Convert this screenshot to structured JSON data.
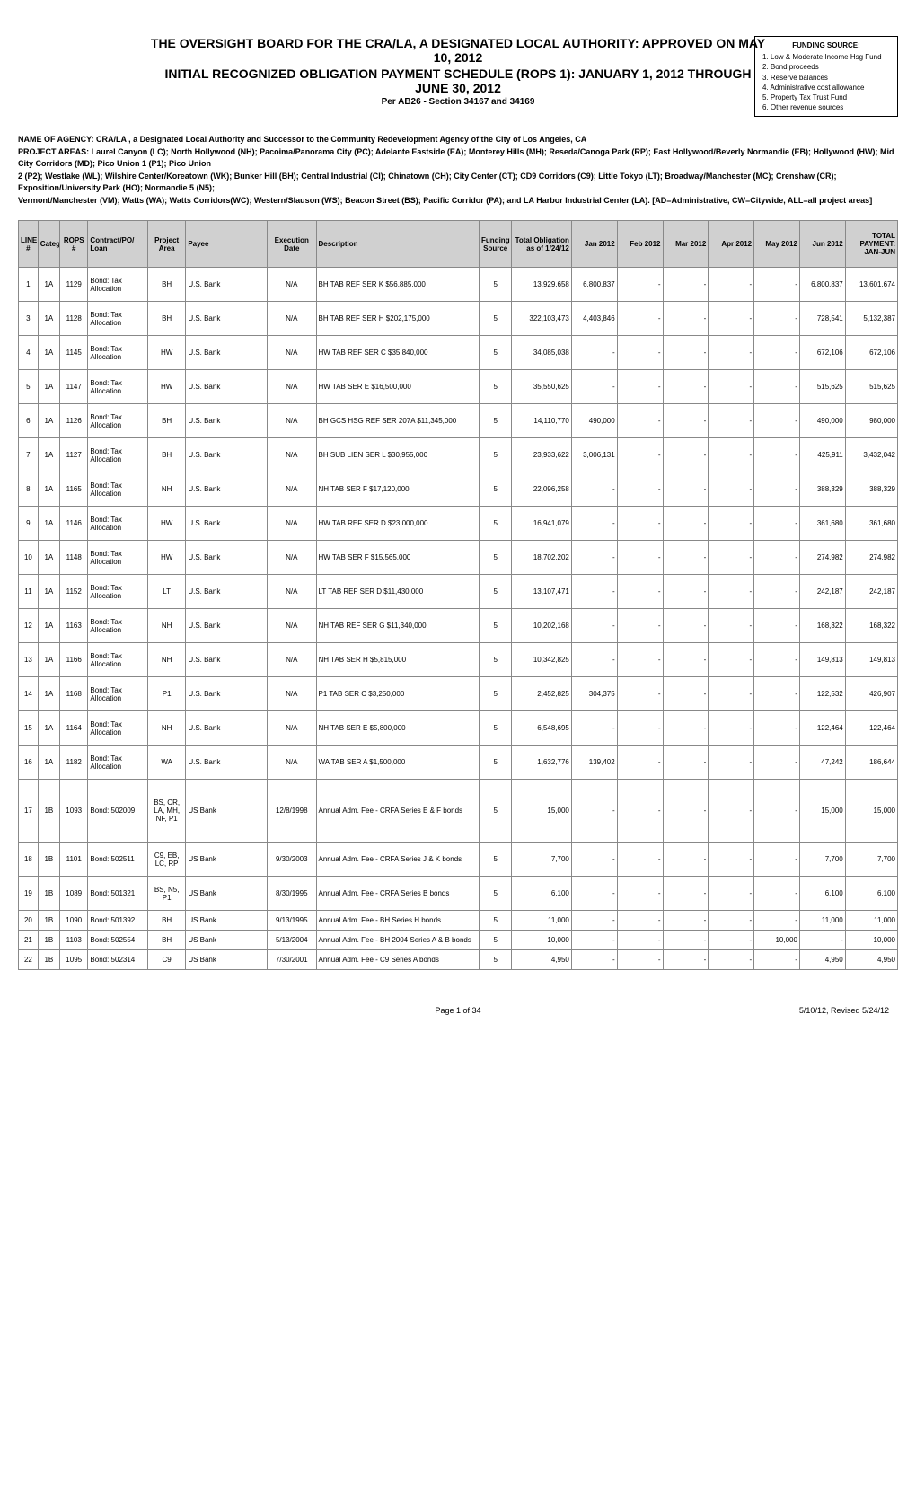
{
  "header": {
    "title1": "THE OVERSIGHT BOARD FOR THE CRA/LA, A DESIGNATED LOCAL AUTHORITY: APPROVED ON MAY 10, 2012",
    "title2": "INITIAL RECOGNIZED OBLIGATION PAYMENT SCHEDULE (ROPS 1):  JANUARY 1, 2012 THROUGH JUNE 30, 2012",
    "subtitle": "Per AB26 - Section 34167 and 34169"
  },
  "funding_source": {
    "heading": "FUNDING SOURCE:",
    "items": [
      "1. Low & Moderate Income Hsg Fund",
      "2. Bond proceeds",
      "3. Reserve balances",
      "4. Administrative cost allowance",
      "5. Property Tax Trust Fund",
      "6. Other revenue sources"
    ]
  },
  "meta": {
    "agency": "NAME OF AGENCY:  CRA/LA , a Designated Local Authority and Successor to the Community Redevelopment Agency of the City of Los Angeles, CA",
    "areas1": "PROJECT AREAS:   Laurel Canyon (LC); North Hollywood (NH); Pacoima/Panorama City (PC); Adelante Eastside (EA); Monterey Hills (MH); Reseda/Canoga Park (RP); East Hollywood/Beverly Normandie (EB); Hollywood (HW); Mid City Corridors (MD); Pico Union 1 (P1); Pico Union",
    "areas2": "2 (P2); Westlake (WL); Wilshire Center/Koreatown (WK); Bunker Hill (BH); Central Industrial (CI); Chinatown (CH); City Center (CT); CD9 Corridors (C9); Little Tokyo (LT); Broadway/Manchester (MC); Crenshaw (CR); Exposition/University Park (HO); Normandie 5 (N5);",
    "areas3": "Vermont/Manchester (VM); Watts (WA); Watts Corridors(WC); Western/Slauson (WS); Beacon Street (BS); Pacific Corridor (PA); and LA Harbor Industrial Center (LA).  [AD=Administrative, CW=Citywide, ALL=all project areas]"
  },
  "columns": [
    "LINE #",
    "Category",
    "ROPS #",
    "Contract/PO/ Loan",
    "Project Area",
    "Payee",
    "Execution Date",
    "Description",
    "Funding Source",
    "Total Obligation as of 1/24/12",
    "Jan 2012",
    "Feb 2012",
    "Mar 2012",
    "Apr 2012",
    "May 2012",
    "Jun 2012",
    "TOTAL PAYMENT: JAN-JUN"
  ],
  "rows": [
    {
      "line": "1",
      "cat": "1A",
      "rops": "1129",
      "con": "Bond: Tax Allocation",
      "area": "BH",
      "payee": "U.S. Bank",
      "exec": "N/A",
      "desc": "BH TAB REF SER K $56,885,000",
      "fund": "5",
      "tot": "13,929,658",
      "jan": "6,800,837",
      "feb": "-",
      "mar": "-",
      "apr": "-",
      "may": "-",
      "jun": "6,800,837",
      "pay": "13,601,674",
      "short": false
    },
    {
      "line": "3",
      "cat": "1A",
      "rops": "1128",
      "con": "Bond: Tax Allocation",
      "area": "BH",
      "payee": "U.S. Bank",
      "exec": "N/A",
      "desc": "BH TAB REF SER H $202,175,000",
      "fund": "5",
      "tot": "322,103,473",
      "jan": "4,403,846",
      "feb": "-",
      "mar": "-",
      "apr": "-",
      "may": "-",
      "jun": "728,541",
      "pay": "5,132,387",
      "short": false
    },
    {
      "line": "4",
      "cat": "1A",
      "rops": "1145",
      "con": "Bond: Tax Allocation",
      "area": "HW",
      "payee": "U.S. Bank",
      "exec": "N/A",
      "desc": "HW TAB REF SER C $35,840,000",
      "fund": "5",
      "tot": "34,085,038",
      "jan": "-",
      "feb": "-",
      "mar": "-",
      "apr": "-",
      "may": "-",
      "jun": "672,106",
      "pay": "672,106",
      "short": false
    },
    {
      "line": "5",
      "cat": "1A",
      "rops": "1147",
      "con": "Bond: Tax Allocation",
      "area": "HW",
      "payee": "U.S. Bank",
      "exec": "N/A",
      "desc": "HW TAB SER E $16,500,000",
      "fund": "5",
      "tot": "35,550,625",
      "jan": "-",
      "feb": "-",
      "mar": "-",
      "apr": "-",
      "may": "-",
      "jun": "515,625",
      "pay": "515,625",
      "short": false
    },
    {
      "line": "6",
      "cat": "1A",
      "rops": "1126",
      "con": "Bond: Tax Allocation",
      "area": "BH",
      "payee": "U.S. Bank",
      "exec": "N/A",
      "desc": "BH GCS HSG REF SER 207A $11,345,000",
      "fund": "5",
      "tot": "14,110,770",
      "jan": "490,000",
      "feb": "-",
      "mar": "-",
      "apr": "-",
      "may": "-",
      "jun": "490,000",
      "pay": "980,000",
      "short": false
    },
    {
      "line": "7",
      "cat": "1A",
      "rops": "1127",
      "con": "Bond: Tax Allocation",
      "area": "BH",
      "payee": "U.S. Bank",
      "exec": "N/A",
      "desc": "BH SUB LIEN SER L $30,955,000",
      "fund": "5",
      "tot": "23,933,622",
      "jan": "3,006,131",
      "feb": "-",
      "mar": "-",
      "apr": "-",
      "may": "-",
      "jun": "425,911",
      "pay": "3,432,042",
      "short": false
    },
    {
      "line": "8",
      "cat": "1A",
      "rops": "1165",
      "con": "Bond: Tax Allocation",
      "area": "NH",
      "payee": "U.S. Bank",
      "exec": "N/A",
      "desc": "NH TAB SER F $17,120,000",
      "fund": "5",
      "tot": "22,096,258",
      "jan": "-",
      "feb": "-",
      "mar": "-",
      "apr": "-",
      "may": "-",
      "jun": "388,329",
      "pay": "388,329",
      "short": false
    },
    {
      "line": "9",
      "cat": "1A",
      "rops": "1146",
      "con": "Bond: Tax Allocation",
      "area": "HW",
      "payee": "U.S. Bank",
      "exec": "N/A",
      "desc": "HW TAB REF SER D $23,000,000",
      "fund": "5",
      "tot": "16,941,079",
      "jan": "-",
      "feb": "-",
      "mar": "-",
      "apr": "-",
      "may": "-",
      "jun": "361,680",
      "pay": "361,680",
      "short": false
    },
    {
      "line": "10",
      "cat": "1A",
      "rops": "1148",
      "con": "Bond: Tax Allocation",
      "area": "HW",
      "payee": "U.S. Bank",
      "exec": "N/A",
      "desc": "HW TAB SER F $15,565,000",
      "fund": "5",
      "tot": "18,702,202",
      "jan": "-",
      "feb": "-",
      "mar": "-",
      "apr": "-",
      "may": "-",
      "jun": "274,982",
      "pay": "274,982",
      "short": false
    },
    {
      "line": "11",
      "cat": "1A",
      "rops": "1152",
      "con": "Bond: Tax Allocation",
      "area": "LT",
      "payee": "U.S. Bank",
      "exec": "N/A",
      "desc": "LT TAB REF SER D $11,430,000",
      "fund": "5",
      "tot": "13,107,471",
      "jan": "-",
      "feb": "-",
      "mar": "-",
      "apr": "-",
      "may": "-",
      "jun": "242,187",
      "pay": "242,187",
      "short": false
    },
    {
      "line": "12",
      "cat": "1A",
      "rops": "1163",
      "con": "Bond: Tax Allocation",
      "area": "NH",
      "payee": "U.S. Bank",
      "exec": "N/A",
      "desc": "NH TAB REF SER G $11,340,000",
      "fund": "5",
      "tot": "10,202,168",
      "jan": "-",
      "feb": "-",
      "mar": "-",
      "apr": "-",
      "may": "-",
      "jun": "168,322",
      "pay": "168,322",
      "short": false
    },
    {
      "line": "13",
      "cat": "1A",
      "rops": "1166",
      "con": "Bond: Tax Allocation",
      "area": "NH",
      "payee": "U.S. Bank",
      "exec": "N/A",
      "desc": "NH TAB SER H $5,815,000",
      "fund": "5",
      "tot": "10,342,825",
      "jan": "-",
      "feb": "-",
      "mar": "-",
      "apr": "-",
      "may": "-",
      "jun": "149,813",
      "pay": "149,813",
      "short": false
    },
    {
      "line": "14",
      "cat": "1A",
      "rops": "1168",
      "con": "Bond: Tax Allocation",
      "area": "P1",
      "payee": "U.S. Bank",
      "exec": "N/A",
      "desc": "P1 TAB SER C $3,250,000",
      "fund": "5",
      "tot": "2,452,825",
      "jan": "304,375",
      "feb": "-",
      "mar": "-",
      "apr": "-",
      "may": "-",
      "jun": "122,532",
      "pay": "426,907",
      "short": false
    },
    {
      "line": "15",
      "cat": "1A",
      "rops": "1164",
      "con": "Bond: Tax Allocation",
      "area": "NH",
      "payee": "U.S. Bank",
      "exec": "N/A",
      "desc": "NH TAB SER E $5,800,000",
      "fund": "5",
      "tot": "6,548,695",
      "jan": "-",
      "feb": "-",
      "mar": "-",
      "apr": "-",
      "may": "-",
      "jun": "122,464",
      "pay": "122,464",
      "short": false
    },
    {
      "line": "16",
      "cat": "1A",
      "rops": "1182",
      "con": "Bond: Tax Allocation",
      "area": "WA",
      "payee": "U.S. Bank",
      "exec": "N/A",
      "desc": "WA TAB SER A $1,500,000",
      "fund": "5",
      "tot": "1,632,776",
      "jan": "139,402",
      "feb": "-",
      "mar": "-",
      "apr": "-",
      "may": "-",
      "jun": "47,242",
      "pay": "186,644",
      "short": false
    },
    {
      "line": "17",
      "cat": "1B",
      "rops": "1093",
      "con": "Bond: 502009",
      "area": "BS, CR, LA, MH, NF, P1",
      "payee": "US Bank",
      "exec": "12/8/1998",
      "desc": "Annual Adm. Fee - CRFA Series E & F bonds",
      "fund": "5",
      "tot": "15,000",
      "jan": "-",
      "feb": "-",
      "mar": "-",
      "apr": "-",
      "may": "-",
      "jun": "15,000",
      "pay": "15,000",
      "short": false,
      "tall": true
    },
    {
      "line": "18",
      "cat": "1B",
      "rops": "1101",
      "con": "Bond: 502511",
      "area": "C9, EB, LC, RP",
      "payee": "US Bank",
      "exec": "9/30/2003",
      "desc": "Annual Adm. Fee - CRFA Series J & K bonds",
      "fund": "5",
      "tot": "7,700",
      "jan": "-",
      "feb": "-",
      "mar": "-",
      "apr": "-",
      "may": "-",
      "jun": "7,700",
      "pay": "7,700",
      "short": false
    },
    {
      "line": "19",
      "cat": "1B",
      "rops": "1089",
      "con": "Bond: 501321",
      "area": "BS, N5, P1",
      "payee": "US Bank",
      "exec": "8/30/1995",
      "desc": "Annual Adm. Fee - CRFA Series B bonds",
      "fund": "5",
      "tot": "6,100",
      "jan": "-",
      "feb": "-",
      "mar": "-",
      "apr": "-",
      "may": "-",
      "jun": "6,100",
      "pay": "6,100",
      "short": false
    },
    {
      "line": "20",
      "cat": "1B",
      "rops": "1090",
      "con": "Bond: 501392",
      "area": "BH",
      "payee": "US Bank",
      "exec": "9/13/1995",
      "desc": "Annual Adm. Fee - BH Series H bonds",
      "fund": "5",
      "tot": "11,000",
      "jan": "-",
      "feb": "-",
      "mar": "-",
      "apr": "-",
      "may": "-",
      "jun": "11,000",
      "pay": "11,000",
      "short": true
    },
    {
      "line": "21",
      "cat": "1B",
      "rops": "1103",
      "con": "Bond: 502554",
      "area": "BH",
      "payee": "US Bank",
      "exec": "5/13/2004",
      "desc": "Annual Adm. Fee - BH 2004 Series A & B bonds",
      "fund": "5",
      "tot": "10,000",
      "jan": "-",
      "feb": "-",
      "mar": "-",
      "apr": "-",
      "may": "10,000",
      "jun": "-",
      "pay": "10,000",
      "short": true
    },
    {
      "line": "22",
      "cat": "1B",
      "rops": "1095",
      "con": "Bond: 502314",
      "area": "C9",
      "payee": "US Bank",
      "exec": "7/30/2001",
      "desc": "Annual Adm. Fee - C9 Series A bonds",
      "fund": "5",
      "tot": "4,950",
      "jan": "-",
      "feb": "-",
      "mar": "-",
      "apr": "-",
      "may": "-",
      "jun": "4,950",
      "pay": "4,950",
      "short": true
    }
  ],
  "footer": {
    "left": "",
    "center": "Page 1 of 34",
    "right": "5/10/12, Revised 5/24/12"
  }
}
